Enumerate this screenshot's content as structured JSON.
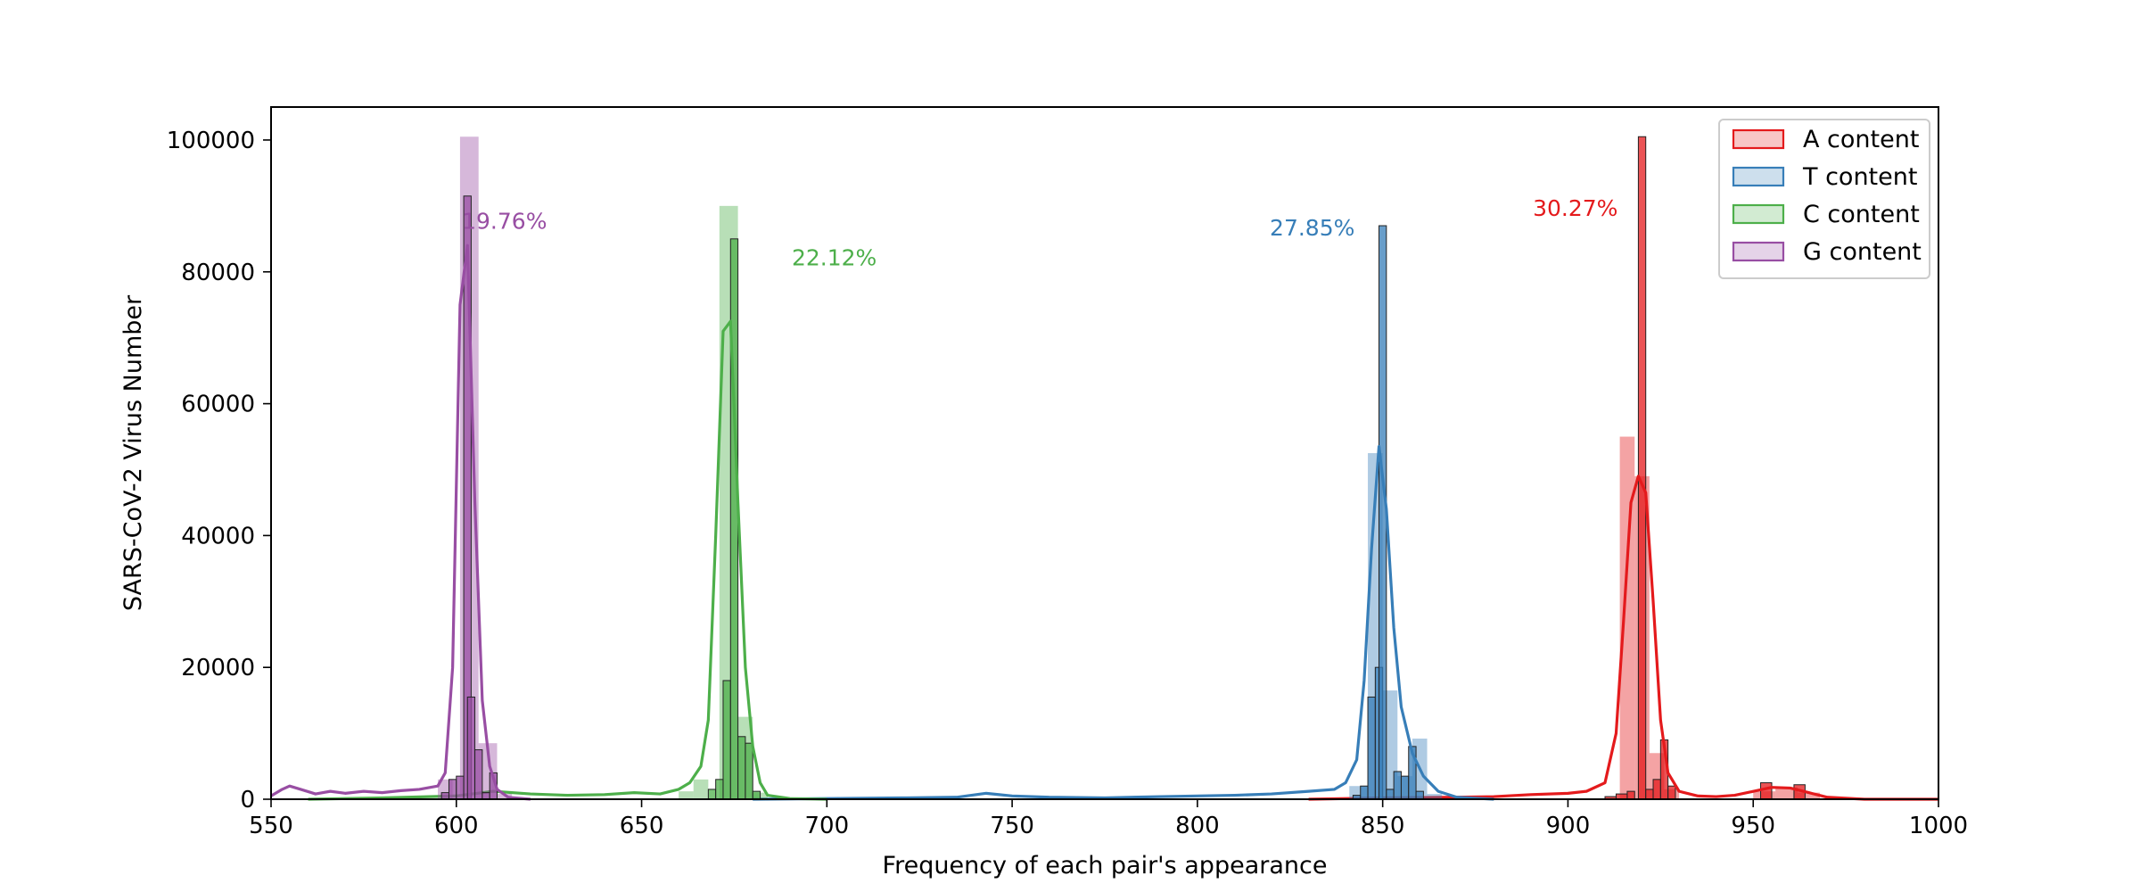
{
  "chart_data": {
    "type": "bar",
    "xlabel": "Frequency of each pair's appearance",
    "ylabel": "SARS-CoV-2 Virus Number",
    "xlim": [
      550,
      1000
    ],
    "ylim": [
      0,
      105000
    ],
    "xticks": [
      550,
      600,
      650,
      700,
      750,
      800,
      850,
      900,
      950,
      1000
    ],
    "yticks": [
      0,
      20000,
      40000,
      60000,
      80000,
      100000
    ],
    "grid": false,
    "legend_position": "top-right",
    "series": [
      {
        "name": "A content",
        "color": "#e41a1c",
        "annotation": {
          "text": "30.27%",
          "x": 902,
          "y": 88500
        },
        "wide_bins": [
          {
            "x0": 914,
            "x1": 918,
            "y": 55000
          },
          {
            "x0": 918,
            "x1": 922,
            "y": 49000
          },
          {
            "x0": 922,
            "x1": 926,
            "y": 7000
          },
          {
            "x0": 926,
            "x1": 930,
            "y": 1500
          },
          {
            "x0": 950,
            "x1": 956,
            "y": 1200
          },
          {
            "x0": 956,
            "x1": 962,
            "y": 1800
          },
          {
            "x0": 962,
            "x1": 968,
            "y": 1000
          }
        ],
        "narrow_bins": [
          {
            "x0": 910,
            "x1": 913,
            "y": 400
          },
          {
            "x0": 913,
            "x1": 916,
            "y": 800
          },
          {
            "x0": 916,
            "x1": 918,
            "y": 1200
          },
          {
            "x0": 919,
            "x1": 921,
            "y": 100500
          },
          {
            "x0": 921,
            "x1": 923,
            "y": 1500
          },
          {
            "x0": 923,
            "x1": 925,
            "y": 3000
          },
          {
            "x0": 925,
            "x1": 927,
            "y": 9000
          },
          {
            "x0": 927,
            "x1": 929,
            "y": 2000
          },
          {
            "x0": 952,
            "x1": 955,
            "y": 2500
          },
          {
            "x0": 961,
            "x1": 964,
            "y": 2200
          }
        ],
        "kde": {
          "x": [
            830,
            850,
            870,
            880,
            890,
            900,
            905,
            910,
            913,
            915,
            917,
            919,
            921,
            923,
            925,
            927,
            930,
            935,
            940,
            945,
            950,
            955,
            960,
            965,
            970,
            980,
            1000
          ],
          "y": [
            0,
            200,
            300,
            400,
            700,
            900,
            1200,
            2500,
            10000,
            27000,
            45000,
            49000,
            46500,
            30000,
            12000,
            4000,
            1200,
            500,
            400,
            600,
            1200,
            1800,
            1700,
            1000,
            300,
            0,
            0
          ]
        }
      },
      {
        "name": "T content",
        "color": "#377eb8",
        "annotation": {
          "text": "27.85%",
          "x": 831,
          "y": 85500
        },
        "wide_bins": [
          {
            "x0": 841,
            "x1": 846,
            "y": 2000
          },
          {
            "x0": 846,
            "x1": 850,
            "y": 52500
          },
          {
            "x0": 850,
            "x1": 854,
            "y": 16500
          },
          {
            "x0": 854,
            "x1": 858,
            "y": 3500
          },
          {
            "x0": 858,
            "x1": 862,
            "y": 9200
          },
          {
            "x0": 862,
            "x1": 866,
            "y": 800
          }
        ],
        "narrow_bins": [
          {
            "x0": 842,
            "x1": 844,
            "y": 600
          },
          {
            "x0": 844,
            "x1": 846,
            "y": 2000
          },
          {
            "x0": 846,
            "x1": 848,
            "y": 15500
          },
          {
            "x0": 848,
            "x1": 850,
            "y": 20000
          },
          {
            "x0": 849,
            "x1": 851,
            "y": 87000
          },
          {
            "x0": 851,
            "x1": 853,
            "y": 1500
          },
          {
            "x0": 853,
            "x1": 855,
            "y": 4200
          },
          {
            "x0": 855,
            "x1": 857,
            "y": 3500
          },
          {
            "x0": 857,
            "x1": 859,
            "y": 8000
          },
          {
            "x0": 859,
            "x1": 861,
            "y": 1200
          }
        ],
        "kde": {
          "x": [
            680,
            700,
            720,
            735,
            743,
            750,
            760,
            775,
            790,
            800,
            810,
            820,
            830,
            837,
            840,
            843,
            845,
            847,
            849,
            851,
            853,
            855,
            858,
            861,
            865,
            870,
            880
          ],
          "y": [
            0,
            100,
            200,
            300,
            900,
            500,
            300,
            200,
            400,
            500,
            600,
            800,
            1200,
            1500,
            2500,
            6000,
            18000,
            38000,
            53500,
            44000,
            26000,
            14000,
            7000,
            3500,
            1200,
            300,
            0
          ]
        }
      },
      {
        "name": "C content",
        "color": "#4daf4a",
        "annotation": {
          "text": "22.12%",
          "x": 702,
          "y": 81000
        },
        "wide_bins": [
          {
            "x0": 660,
            "x1": 664,
            "y": 1200
          },
          {
            "x0": 664,
            "x1": 668,
            "y": 3000
          },
          {
            "x0": 671,
            "x1": 676,
            "y": 90000
          },
          {
            "x0": 676,
            "x1": 680,
            "y": 12500
          },
          {
            "x0": 680,
            "x1": 684,
            "y": 1000
          }
        ],
        "narrow_bins": [
          {
            "x0": 668,
            "x1": 670,
            "y": 1500
          },
          {
            "x0": 670,
            "x1": 672,
            "y": 3000
          },
          {
            "x0": 672,
            "x1": 674,
            "y": 18000
          },
          {
            "x0": 674,
            "x1": 676,
            "y": 85000
          },
          {
            "x0": 676,
            "x1": 678,
            "y": 9500
          },
          {
            "x0": 678,
            "x1": 680,
            "y": 8500
          },
          {
            "x0": 680,
            "x1": 682,
            "y": 1200
          }
        ],
        "kde": {
          "x": [
            560,
            580,
            600,
            610,
            620,
            630,
            640,
            648,
            655,
            660,
            663,
            666,
            668,
            670,
            672,
            674,
            676,
            678,
            680,
            682,
            684,
            690,
            700
          ],
          "y": [
            0,
            200,
            500,
            1200,
            800,
            600,
            700,
            1000,
            800,
            1500,
            2500,
            5000,
            12000,
            40000,
            71000,
            72500,
            45000,
            20000,
            8000,
            2500,
            600,
            100,
            0
          ]
        }
      },
      {
        "name": "G content",
        "color": "#984ea3",
        "annotation": {
          "text": "19.76%",
          "x": 613,
          "y": 86500
        },
        "wide_bins": [
          {
            "x0": 595,
            "x1": 599,
            "y": 3000
          },
          {
            "x0": 601,
            "x1": 606,
            "y": 100500
          },
          {
            "x0": 606,
            "x1": 611,
            "y": 8500
          },
          {
            "x0": 611,
            "x1": 615,
            "y": 800
          }
        ],
        "narrow_bins": [
          {
            "x0": 596,
            "x1": 598,
            "y": 1000
          },
          {
            "x0": 598,
            "x1": 600,
            "y": 3000
          },
          {
            "x0": 600,
            "x1": 602,
            "y": 3500
          },
          {
            "x0": 602,
            "x1": 604,
            "y": 91500
          },
          {
            "x0": 603,
            "x1": 605,
            "y": 15500
          },
          {
            "x0": 605,
            "x1": 607,
            "y": 7500
          },
          {
            "x0": 607,
            "x1": 609,
            "y": 1000
          },
          {
            "x0": 609,
            "x1": 611,
            "y": 4000
          }
        ],
        "kde": {
          "x": [
            550,
            553,
            555,
            558,
            562,
            566,
            570,
            575,
            580,
            585,
            590,
            595,
            597,
            599,
            601,
            603,
            605,
            607,
            609,
            611,
            614,
            620
          ],
          "y": [
            500,
            1500,
            2000,
            1500,
            800,
            1200,
            900,
            1200,
            1000,
            1300,
            1500,
            2000,
            4000,
            20000,
            75000,
            84000,
            45000,
            15000,
            5000,
            1500,
            300,
            0
          ]
        }
      }
    ]
  }
}
